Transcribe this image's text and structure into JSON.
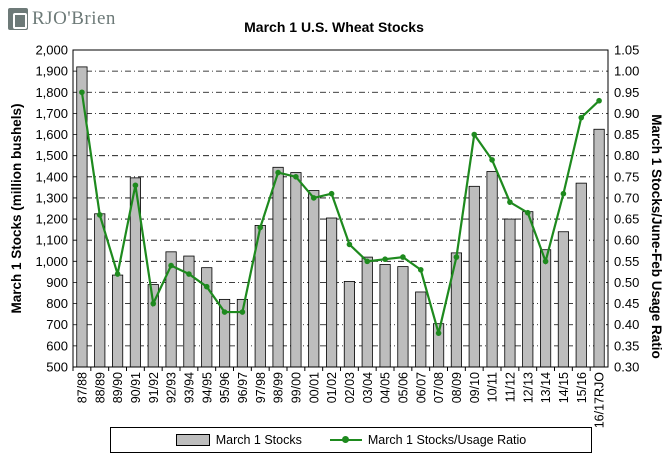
{
  "brand": {
    "name": "RJO'Brien"
  },
  "chart_data": {
    "type": "bar",
    "title": "March 1 U.S. Wheat Stocks",
    "ylabel": "March 1 Stocks (million bushels)",
    "y2label": "March 1 Stocks/June-Feb Usage Ratio",
    "ylim": [
      500,
      2000
    ],
    "y2lim": [
      0.3,
      1.05
    ],
    "yticks": [
      "500",
      "600",
      "700",
      "800",
      "900",
      "1,000",
      "1,100",
      "1,200",
      "1,300",
      "1,400",
      "1,500",
      "1,600",
      "1,700",
      "1,800",
      "1,900",
      "2,000"
    ],
    "y2ticks": [
      "0.30",
      "0.35",
      "0.40",
      "0.45",
      "0.50",
      "0.55",
      "0.60",
      "0.65",
      "0.70",
      "0.75",
      "0.80",
      "0.85",
      "0.90",
      "0.95",
      "1.00",
      "1.05"
    ],
    "categories": [
      "87/88",
      "88/89",
      "89/90",
      "90/91",
      "91/92",
      "92/93",
      "93/94",
      "94/95",
      "95/96",
      "96/97",
      "97/98",
      "98/99",
      "99/00",
      "00/01",
      "01/02",
      "02/03",
      "03/04",
      "04/05",
      "05/06",
      "06/07",
      "07/08",
      "08/09",
      "09/10",
      "10/11",
      "11/12",
      "12/13",
      "13/14",
      "14/15",
      "15/16",
      "16/17RJO"
    ],
    "series": [
      {
        "name": "March 1 Stocks",
        "type": "bar",
        "color": "#bdbdbd",
        "values": [
          1920,
          1225,
          935,
          1395,
          890,
          1045,
          1025,
          970,
          820,
          820,
          1170,
          1445,
          1420,
          1335,
          1205,
          905,
          1020,
          985,
          975,
          855,
          705,
          1040,
          1355,
          1425,
          1200,
          1235,
          1055,
          1140,
          1370,
          1625
        ]
      },
      {
        "name": "March 1 Stocks/Usage Ratio",
        "type": "line",
        "color": "#1e8a1e",
        "axis": "right",
        "values": [
          0.95,
          0.66,
          0.52,
          0.73,
          0.45,
          0.54,
          0.52,
          0.49,
          0.43,
          0.43,
          0.63,
          0.76,
          0.75,
          0.7,
          0.71,
          0.59,
          0.55,
          0.555,
          0.56,
          0.53,
          0.38,
          0.56,
          0.85,
          0.79,
          0.69,
          0.665,
          0.55,
          0.71,
          0.89,
          0.93
        ]
      }
    ],
    "grid": true,
    "legend": "bottom"
  }
}
